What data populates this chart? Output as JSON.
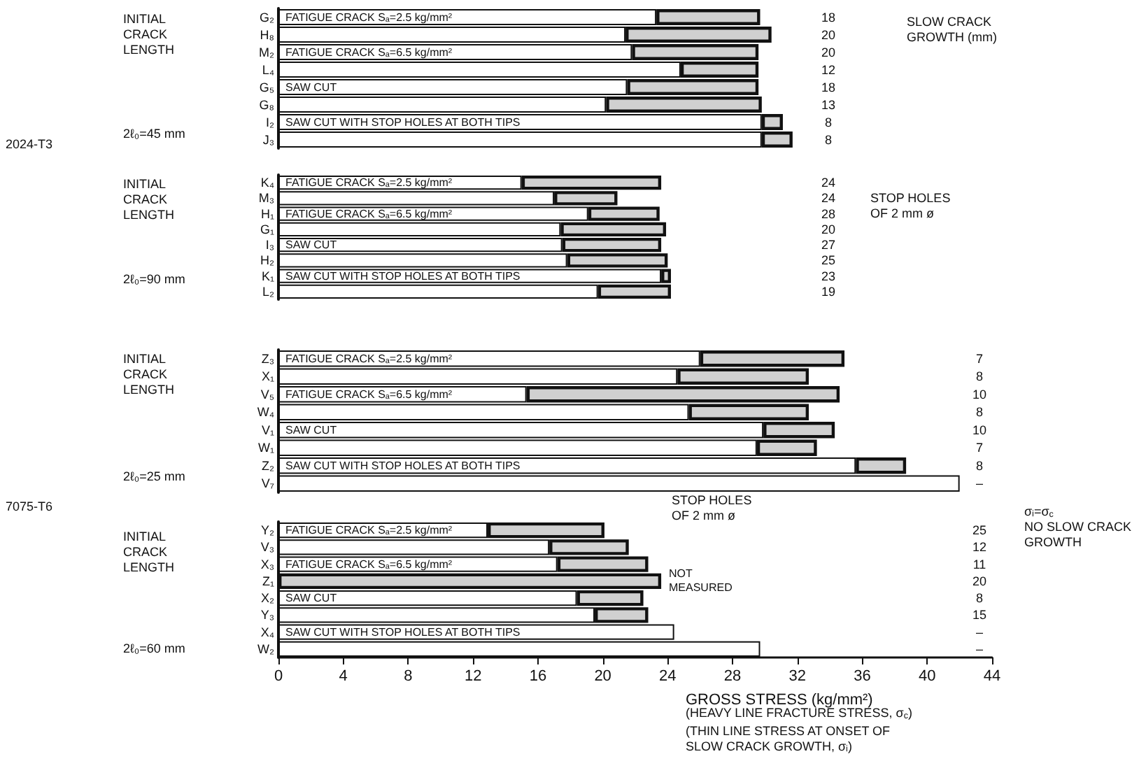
{
  "chart_data": [
    {
      "type": "bar",
      "orientation": "horizontal",
      "stacked": true,
      "tick_labels": "y",
      "xlim": [
        0,
        44
      ],
      "xticks": [
        0,
        4,
        8,
        12,
        16,
        20,
        24,
        28,
        32,
        36,
        40,
        44
      ],
      "categories": [
        "G₂",
        "H₈",
        "M₂",
        "L₄",
        "G₅",
        "G₈",
        "I₂",
        "J₃"
      ],
      "series": [
        {
          "color": "#ffffff",
          "values": [
            23.3,
            21.4,
            21.8,
            24.8,
            21.5,
            20.2,
            29.8,
            29.8
          ]
        },
        {
          "color": "#d0d0d0",
          "values": [
            6.4,
            9.0,
            7.8,
            4.8,
            8.1,
            9.6,
            1.3,
            1.9
          ]
        }
      ],
      "annotations": [
        "2024-T3",
        "INITIAL\nCRACK\nLENGTH",
        "2ℓ₀=45 mm",
        "FATIGUE CRACK Sₐ=2.5 kg/mm²",
        "FATIGUE CRACK Sₐ=6.5 kg/mm²",
        "SAW CUT",
        "SAW CUT WITH STOP HOLES AT BOTH TIPS",
        "SLOW CRACK\nGROWTH (mm)",
        "18",
        "20",
        "20",
        "12",
        "18",
        "13",
        "8",
        "8"
      ]
    },
    {
      "type": "bar",
      "orientation": "horizontal",
      "stacked": true,
      "tick_labels": "y",
      "xlim": [
        0,
        44
      ],
      "xticks": [
        0,
        4,
        8,
        12,
        16,
        20,
        24,
        28,
        32,
        36,
        40,
        44
      ],
      "categories": [
        "K₄",
        "M₃",
        "H₁",
        "G₁",
        "I₃",
        "H₂",
        "K₁",
        "L₂"
      ],
      "series": [
        {
          "color": "#ffffff",
          "values": [
            15.0,
            17.0,
            19.1,
            17.4,
            17.5,
            17.8,
            23.6,
            19.7
          ]
        },
        {
          "color": "#d0d0d0",
          "values": [
            8.6,
            3.9,
            4.4,
            6.5,
            6.1,
            6.2,
            0.6,
            4.5
          ]
        }
      ],
      "annotations": [
        "INITIAL\nCRACK\nLENGTH",
        "2ℓ₀=90 mm",
        "FATIGUE CRACK Sₐ=2.5 kg/mm²",
        "FATIGUE CRACK Sₐ=6.5 kg/mm²",
        "SAW CUT",
        "SAW CUT WITH STOP HOLES AT BOTH TIPS",
        "STOP HOLES\nOF 2 mm ø",
        "24",
        "24",
        "28",
        "20",
        "27",
        "25",
        "23",
        "19"
      ]
    },
    {
      "type": "bar",
      "orientation": "horizontal",
      "stacked": true,
      "tick_labels": "y",
      "xlim": [
        0,
        44
      ],
      "xticks": [
        0,
        4,
        8,
        12,
        16,
        20,
        24,
        28,
        32,
        36,
        40,
        44
      ],
      "categories": [
        "Z₃",
        "X₁",
        "V₅",
        "W₄",
        "V₁",
        "W₁",
        "Z₂",
        "V₇"
      ],
      "series": [
        {
          "color": "#ffffff",
          "values": [
            26.0,
            24.6,
            15.3,
            25.3,
            29.9,
            29.5,
            35.6,
            42.0
          ]
        },
        {
          "color": "#d0d0d0",
          "values": [
            8.9,
            8.1,
            19.3,
            7.4,
            4.4,
            3.7,
            3.1,
            null
          ]
        }
      ],
      "annotations": [
        "INITIAL\nCRACK\nLENGTH",
        "2ℓ₀=25 mm",
        "FATIGUE CRACK Sₐ=2.5 kg/mm²",
        "FATIGUE CRACK Sₐ=6.5 kg/mm²",
        "SAW CUT",
        "SAW CUT WITH STOP HOLES AT BOTH TIPS",
        "7",
        "8",
        "10",
        "8",
        "10",
        "7",
        "8",
        "–"
      ]
    },
    {
      "type": "bar",
      "orientation": "horizontal",
      "stacked": true,
      "xlim": [
        0,
        44
      ],
      "xticks": [
        0,
        4,
        8,
        12,
        16,
        20,
        24,
        28,
        32,
        36,
        40,
        44
      ],
      "xlabel": "GROSS STRESS (kg/mm²)",
      "categories": [
        "Y₂",
        "V₃",
        "X₃",
        "Z₁",
        "X₂",
        "Y₃",
        "X₄",
        "W₂"
      ],
      "series": [
        {
          "color": "#ffffff",
          "values": [
            12.9,
            16.7,
            17.2,
            null,
            18.4,
            19.5,
            24.4,
            29.7
          ]
        },
        {
          "color": "#d0d0d0",
          "values": [
            7.2,
            4.9,
            5.6,
            23.6,
            4.1,
            3.3,
            null,
            null
          ]
        }
      ],
      "annotations": [
        "7075-T6",
        "INITIAL\nCRACK\nLENGTH",
        "2ℓ₀=60 mm",
        "FATIGUE CRACK Sₐ=2.5 kg/mm²",
        "FATIGUE CRACK Sₐ=6.5 kg/mm²",
        "SAW CUT",
        "SAW CUT WITH STOP HOLES AT BOTH TIPS",
        "STOP HOLES\nOF 2 mm ø",
        "NOT\nMEASURED",
        "σᵢ=σ$_{c}$\nNO SLOW CRACK\nGROWTH",
        "(HEAVY LINE FRACTURE STRESS, σ$_{c}$)",
        "(THIN LINE STRESS AT ONSET OF\nSLOW CRACK GROWTH, σᵢ)",
        "25",
        "12",
        "11",
        "20",
        "8",
        "15",
        "–",
        "–"
      ]
    }
  ]
}
